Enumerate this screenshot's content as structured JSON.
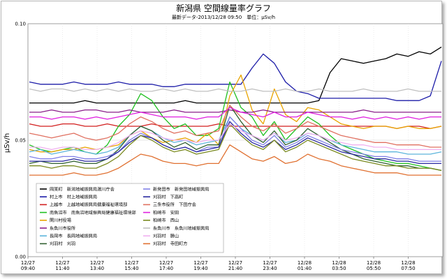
{
  "page": {
    "title": "新潟県 空間線量率グラフ",
    "subtitle": "最新データ-2013/12/28 09:50　単位：μSv/h"
  },
  "chart_data": {
    "type": "line",
    "title": "新潟県 空間線量率グラフ",
    "subtitle": "最新データ-2013/12/28 09:50　単位：μSv/h",
    "xlabel": "",
    "ylabel": "μSv/h",
    "ylim": [
      0,
      0.1
    ],
    "y_ticks": [
      "0.00",
      "0.05",
      "0.10"
    ],
    "x_tick_labels": [
      [
        "12/27",
        "09:40"
      ],
      [
        "12/27",
        "11:40"
      ],
      [
        "12/27",
        "13:40"
      ],
      [
        "12/27",
        "15:40"
      ],
      [
        "12/27",
        "17:40"
      ],
      [
        "12/27",
        "19:40"
      ],
      [
        "12/27",
        "21:40"
      ],
      [
        "12/27",
        "23:40"
      ],
      [
        "12/28",
        "01:40"
      ],
      [
        "12/28",
        "03:50"
      ],
      [
        "12/28",
        "05:50"
      ],
      [
        "12/28",
        "07:50"
      ]
    ],
    "grid": true,
    "legend_position": "bottom-left",
    "series": [
      {
        "name": "岡某町　新潟地域振興局湯川庁舎",
        "color": "#000000",
        "values": [
          0.066,
          0.066,
          0.066,
          0.066,
          0.066,
          0.067,
          0.066,
          0.066,
          0.066,
          0.066,
          0.066,
          0.066,
          0.066,
          0.066,
          0.067,
          0.066,
          0.066,
          0.066,
          0.066,
          0.066,
          0.066,
          0.066,
          0.066,
          0.066,
          0.066,
          0.066,
          0.067,
          0.079,
          0.085,
          0.084,
          0.083,
          0.084,
          0.085,
          0.087,
          0.086,
          0.088,
          0.087,
          0.09
        ]
      },
      {
        "name": "村上市　村上地域振興局",
        "color": "#1c1ca8",
        "values": [
          0.075,
          0.074,
          0.074,
          0.074,
          0.075,
          0.074,
          0.074,
          0.074,
          0.075,
          0.074,
          0.074,
          0.074,
          0.073,
          0.073,
          0.074,
          0.074,
          0.074,
          0.074,
          0.074,
          0.074,
          0.081,
          0.087,
          0.083,
          0.075,
          0.071,
          0.07,
          0.068,
          0.068,
          0.068,
          0.068,
          0.068,
          0.068,
          0.068,
          0.067,
          0.067,
          0.067,
          0.069,
          0.084
        ]
      },
      {
        "name": "上越市　上越地域振興局健康福祉環境部",
        "color": "#d21f1f",
        "values": [
          0.057,
          0.056,
          0.056,
          0.057,
          0.057,
          0.056,
          0.056,
          0.057,
          0.056,
          0.056,
          0.056,
          0.057,
          0.056,
          0.056,
          0.056,
          0.056,
          0.056,
          0.057,
          0.056,
          0.056,
          0.056,
          0.056,
          0.056,
          0.056,
          0.056,
          0.056,
          0.056,
          0.056,
          0.056,
          0.056,
          0.056,
          0.056,
          0.056,
          0.055,
          0.056,
          0.056,
          0.055,
          0.056
        ]
      },
      {
        "name": "南魚沼市　南魚沼地域振興局健康福祉環境部",
        "color": "#20c020",
        "values": [
          0.048,
          0.046,
          0.045,
          0.046,
          0.047,
          0.045,
          0.044,
          0.048,
          0.056,
          0.061,
          0.07,
          0.067,
          0.06,
          0.055,
          0.057,
          0.052,
          0.052,
          0.055,
          0.075,
          0.064,
          0.06,
          0.052,
          0.058,
          0.05,
          0.055,
          0.06,
          0.057,
          0.052,
          0.048,
          0.046,
          0.044,
          0.042,
          0.041,
          0.04,
          0.04,
          0.039,
          0.038,
          0.037
        ]
      },
      {
        "name": "関川村役場",
        "color": "#e8a400",
        "values": [
          0.046,
          0.045,
          0.045,
          0.046,
          0.046,
          0.047,
          0.046,
          0.047,
          0.048,
          0.052,
          0.054,
          0.051,
          0.049,
          0.05,
          0.051,
          0.049,
          0.053,
          0.048,
          0.069,
          0.078,
          0.063,
          0.057,
          0.072,
          0.061,
          0.058,
          0.064,
          0.063,
          0.06,
          0.057,
          0.056,
          0.055,
          0.056,
          0.056,
          0.055,
          0.056,
          0.055,
          0.055,
          0.056
        ]
      },
      {
        "name": "糸魚川市役所",
        "color": "#8a1f8a",
        "values": [
          0.062,
          0.062,
          0.063,
          0.062,
          0.062,
          0.063,
          0.063,
          0.062,
          0.062,
          0.063,
          0.062,
          0.062,
          0.062,
          0.063,
          0.062,
          0.062,
          0.062,
          0.062,
          0.063,
          0.062,
          0.062,
          0.063,
          0.062,
          0.062,
          0.062,
          0.062,
          0.062,
          0.062,
          0.062,
          0.062,
          0.063,
          0.062,
          0.062,
          0.062,
          0.062,
          0.062,
          0.062,
          0.062
        ]
      },
      {
        "name": "長岡市　長岡地域振興局",
        "color": "#5db5dc",
        "values": [
          0.045,
          0.046,
          0.044,
          0.045,
          0.046,
          0.045,
          0.044,
          0.045,
          0.047,
          0.052,
          0.056,
          0.054,
          0.051,
          0.049,
          0.05,
          0.048,
          0.049,
          0.05,
          0.06,
          0.055,
          0.052,
          0.05,
          0.053,
          0.049,
          0.05,
          0.053,
          0.052,
          0.05,
          0.048,
          0.047,
          0.046,
          0.045,
          0.045,
          0.045,
          0.044,
          0.044,
          0.044,
          0.045
        ]
      },
      {
        "name": "刈羽村　刈羽",
        "color": "#306030",
        "values": [
          0.04,
          0.041,
          0.04,
          0.04,
          0.041,
          0.04,
          0.04,
          0.042,
          0.046,
          0.052,
          0.056,
          0.054,
          0.05,
          0.047,
          0.049,
          0.046,
          0.048,
          0.048,
          0.065,
          0.058,
          0.052,
          0.049,
          0.054,
          0.048,
          0.05,
          0.055,
          0.052,
          0.049,
          0.046,
          0.044,
          0.042,
          0.041,
          0.04,
          0.039,
          0.039,
          0.038,
          0.038,
          0.037
        ]
      },
      {
        "name": "新発田市　新発田地域振興局",
        "color": "#8080e8",
        "values": [
          0.043,
          0.042,
          0.042,
          0.043,
          0.043,
          0.042,
          0.042,
          0.043,
          0.045,
          0.05,
          0.053,
          0.051,
          0.048,
          0.046,
          0.047,
          0.045,
          0.047,
          0.047,
          0.06,
          0.055,
          0.05,
          0.048,
          0.052,
          0.047,
          0.049,
          0.052,
          0.05,
          0.048,
          0.046,
          0.045,
          0.044,
          0.043,
          0.043,
          0.042,
          0.042,
          0.041,
          0.041,
          0.041
        ]
      },
      {
        "name": "刈羽村　下高町",
        "color": "#2a2aa0",
        "values": [
          0.041,
          0.041,
          0.041,
          0.041,
          0.042,
          0.041,
          0.041,
          0.042,
          0.045,
          0.049,
          0.052,
          0.051,
          0.048,
          0.046,
          0.047,
          0.045,
          0.046,
          0.047,
          0.058,
          0.053,
          0.049,
          0.047,
          0.05,
          0.046,
          0.048,
          0.051,
          0.049,
          0.047,
          0.045,
          0.044,
          0.043,
          0.042,
          0.042,
          0.041,
          0.041,
          0.04,
          0.04,
          0.04
        ]
      },
      {
        "name": "三条市役所　下田庁舎",
        "color": "#e07060",
        "values": [
          0.053,
          0.052,
          0.051,
          0.052,
          0.053,
          0.051,
          0.05,
          0.051,
          0.053,
          0.057,
          0.06,
          0.058,
          0.055,
          0.053,
          0.054,
          0.052,
          0.053,
          0.054,
          0.065,
          0.06,
          0.056,
          0.054,
          0.057,
          0.053,
          0.055,
          0.058,
          0.056,
          0.054,
          0.052,
          0.051,
          0.05,
          0.049,
          0.049,
          0.048,
          0.048,
          0.048,
          0.047,
          0.047
        ]
      },
      {
        "name": "柏崎市　安田",
        "color": "#e020e0",
        "values": [
          0.06,
          0.06,
          0.059,
          0.06,
          0.06,
          0.059,
          0.06,
          0.059,
          0.06,
          0.061,
          0.062,
          0.061,
          0.06,
          0.06,
          0.06,
          0.059,
          0.06,
          0.06,
          0.064,
          0.062,
          0.061,
          0.06,
          0.062,
          0.06,
          0.06,
          0.062,
          0.061,
          0.06,
          0.06,
          0.059,
          0.06,
          0.059,
          0.06,
          0.059,
          0.06,
          0.059,
          0.06,
          0.06
        ]
      },
      {
        "name": "柏崎市　西山",
        "color": "#7a8a20",
        "values": [
          0.039,
          0.039,
          0.038,
          0.039,
          0.039,
          0.038,
          0.038,
          0.04,
          0.043,
          0.048,
          0.052,
          0.05,
          0.047,
          0.045,
          0.046,
          0.044,
          0.045,
          0.046,
          0.057,
          0.052,
          0.048,
          0.046,
          0.05,
          0.045,
          0.047,
          0.05,
          0.048,
          0.046,
          0.044,
          0.042,
          0.041,
          0.04,
          0.039,
          0.039,
          0.038,
          0.038,
          0.038,
          0.037
        ]
      },
      {
        "name": "糸魚川市　糸魚川地域振興局",
        "color": "#c0c0c0",
        "values": [
          0.072,
          0.071,
          0.072,
          0.072,
          0.071,
          0.072,
          0.071,
          0.072,
          0.071,
          0.072,
          0.071,
          0.071,
          0.072,
          0.071,
          0.072,
          0.071,
          0.071,
          0.072,
          0.071,
          0.071,
          0.072,
          0.071,
          0.071,
          0.072,
          0.071,
          0.071,
          0.072,
          0.071,
          0.071,
          0.071,
          0.072,
          0.071,
          0.071,
          0.071,
          0.072,
          0.071,
          0.071,
          0.071
        ]
      },
      {
        "name": "刈羽村　勝山",
        "color": "#f0b0f0",
        "values": [
          0.047,
          0.047,
          0.046,
          0.047,
          0.047,
          0.046,
          0.046,
          0.047,
          0.049,
          0.052,
          0.054,
          0.053,
          0.051,
          0.05,
          0.05,
          0.049,
          0.05,
          0.05,
          0.057,
          0.054,
          0.052,
          0.05,
          0.053,
          0.05,
          0.051,
          0.053,
          0.052,
          0.05,
          0.049,
          0.048,
          0.048,
          0.047,
          0.047,
          0.046,
          0.046,
          0.046,
          0.046,
          0.046
        ]
      },
      {
        "name": "刈羽村　寺田町方",
        "color": "#e07030",
        "values": [
          0.035,
          0.035,
          0.035,
          0.035,
          0.036,
          0.035,
          0.035,
          0.036,
          0.038,
          0.041,
          0.044,
          0.043,
          0.041,
          0.04,
          0.04,
          0.039,
          0.04,
          0.04,
          0.048,
          0.045,
          0.042,
          0.041,
          0.043,
          0.04,
          0.041,
          0.044,
          0.042,
          0.041,
          0.039,
          0.038,
          0.037,
          0.036,
          0.036,
          0.036,
          0.035,
          0.035,
          0.035,
          0.035
        ]
      }
    ]
  }
}
